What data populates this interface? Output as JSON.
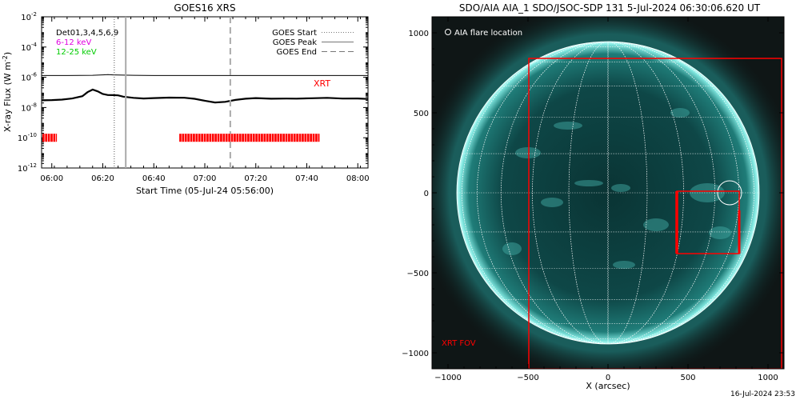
{
  "chart_data": [
    {
      "type": "line",
      "title": "GOES16 XRS",
      "xlabel": "Start Time (05-Jul-24 05:56:00)",
      "ylabel": "X-ray Flux (W m",
      "ylabel_sup": "-2",
      "ylabel_close": ")",
      "y_log": true,
      "xlim_minutes_after_0556": [
        0,
        128
      ],
      "ylim": [
        1e-12,
        0.01
      ],
      "x_ticks": [
        {
          "label": "06:00",
          "min": 4
        },
        {
          "label": "06:20",
          "min": 24
        },
        {
          "label": "06:40",
          "min": 44
        },
        {
          "label": "07:00",
          "min": 64
        },
        {
          "label": "07:20",
          "min": 84
        },
        {
          "label": "07:40",
          "min": 104
        },
        {
          "label": "08:00",
          "min": 124
        }
      ],
      "y_ticks": [
        {
          "base": "10",
          "exp": "-2",
          "value": 0.01
        },
        {
          "base": "10",
          "exp": "-4",
          "value": 0.0001
        },
        {
          "base": "10",
          "exp": "-6",
          "value": 1e-06
        },
        {
          "base": "10",
          "exp": "-8",
          "value": 1e-08
        },
        {
          "base": "10",
          "exp": "-10",
          "value": 1e-10
        },
        {
          "base": "10",
          "exp": "-12",
          "value": 1e-12
        }
      ],
      "legend_left": [
        {
          "text": "Det01,3,4,5,6,9",
          "color": "#000000"
        },
        {
          "text": "6-12 keV",
          "color": "#e000e0"
        },
        {
          "text": "12-25 keV",
          "color": "#00cc00"
        }
      ],
      "legend_right": [
        {
          "text": "GOES Start",
          "style": "dotted"
        },
        {
          "text": "GOES Peak",
          "style": "solid"
        },
        {
          "text": "GOES End",
          "style": "dashed"
        }
      ],
      "annotation": {
        "text": "XRT",
        "color": "#ff0000"
      },
      "series": [
        {
          "name": "",
          "x": [
            0,
            10,
            20,
            24,
            26,
            28,
            30,
            36,
            44,
            52,
            60,
            70,
            80,
            90,
            100,
            110,
            120,
            128
          ],
          "y": [
            1.3e-06,
            1.3e-06,
            1.35e-06,
            1.45e-06,
            1.5e-06,
            1.45e-06,
            1.4e-06,
            1.35e-06,
            1.3e-06,
            1.3e-06,
            1.3e-06,
            1.3e-06,
            1.3e-06,
            1.3e-06,
            1.3e-06,
            1.3e-06,
            1.3e-06,
            1.3e-06
          ]
        },
        {
          "name": "",
          "x": [
            0,
            4,
            8,
            12,
            16,
            18,
            20,
            22,
            24,
            26,
            28,
            30,
            32,
            36,
            40,
            44,
            50,
            56,
            60,
            64,
            68,
            72,
            76,
            80,
            84,
            90,
            96,
            100,
            106,
            112,
            118,
            124,
            128
          ],
          "y": [
            3e-08,
            3.5e-08,
            3.8e-08,
            4e-08,
            5e-08,
            9e-08,
            1.5e-07,
            1.3e-07,
            9e-08,
            7e-08,
            6e-08,
            5.5e-08,
            5e-08,
            4.8e-08,
            4.6e-08,
            4.5e-08,
            4.2e-08,
            3.8e-08,
            3.5e-08,
            3e-08,
            2.5e-08,
            2.6e-08,
            3e-08,
            3.3e-08,
            3.8e-08,
            4e-08,
            4.5e-08,
            4.3e-08,
            4e-08,
            3.8e-08,
            3.5e-08,
            4e-08,
            4.2e-08
          ]
        }
      ],
      "goes_start_min": 28.5,
      "goes_peak_min": 33,
      "goes_end_min": 74,
      "xrt_segments_min": [
        [
          -3,
          6
        ],
        [
          54,
          109
        ]
      ],
      "xrt_level": 1e-10
    },
    {
      "type": "scatter",
      "title": "SDO/AIA AIA_1 SDO/JSOC-SDP 131  5-Jul-2024 06:30:06.620 UT",
      "xlabel": "X (arcsec)",
      "xlim": [
        -1100,
        1100
      ],
      "ylim": [
        -1100,
        1100
      ],
      "x_ticks": [
        -1000,
        -500,
        0,
        500,
        1000
      ],
      "y_ticks": [
        1000,
        500,
        0,
        -500,
        -1000
      ],
      "x_tick_labels": [
        "−1000",
        "−500",
        "0",
        "500",
        "1000"
      ],
      "y_tick_labels": [
        "1000",
        "500",
        "0",
        "−500",
        "−1000"
      ],
      "legend": {
        "text": "AIA flare location",
        "symbol": "circle",
        "color": "#ffffff"
      },
      "solar_radius_arcsec": 945,
      "flare_location": {
        "x": 760,
        "y": 0,
        "r": 75
      },
      "xrt_fov": {
        "label": "XRT FOV",
        "x0": -495,
        "x1": 1085,
        "y0": -1100,
        "y1": 840
      },
      "xrt_subfield": {
        "x0": 430,
        "x1": 820,
        "y0": -380,
        "y1": 10
      },
      "colors": {
        "disk": "#0b3b3b",
        "limb": "#9ff5ee",
        "xrt": "#ff0000",
        "grid": "#ffffff"
      }
    }
  ],
  "footer": {
    "timestamp": "16-Jul-2024 23:53"
  }
}
